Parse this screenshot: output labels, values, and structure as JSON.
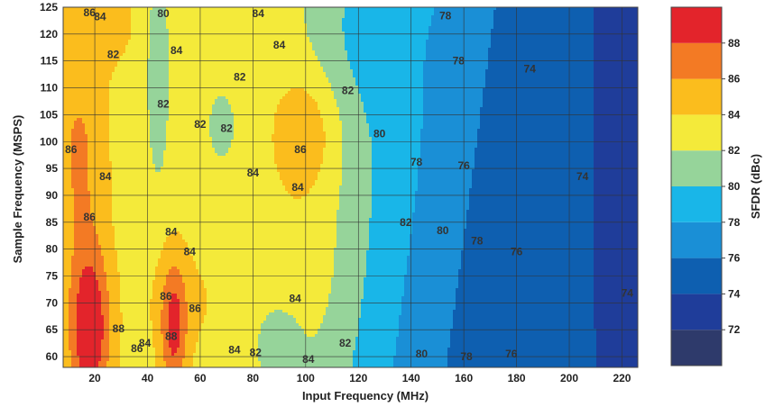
{
  "chart_data": {
    "type": "heatmap",
    "xlabel": "Input Frequency (MHz)",
    "ylabel": "Sample Frequency (MSPS)",
    "colorbar_label": "SFDR (dBc)",
    "xlim": [
      8,
      226
    ],
    "ylim": [
      58,
      125
    ],
    "x_ticks": [
      "20",
      "40",
      "60",
      "80",
      "100",
      "120",
      "140",
      "160",
      "180",
      "200",
      "220"
    ],
    "y_ticks": [
      "60",
      "65",
      "70",
      "75",
      "80",
      "85",
      "90",
      "95",
      "100",
      "105",
      "110",
      "115",
      "120",
      "125"
    ],
    "colorbar_ticks": [
      "72",
      "74",
      "76",
      "78",
      "80",
      "82",
      "84",
      "86",
      "88"
    ],
    "grid": true,
    "levels": [
      {
        "min": 70,
        "max": 72,
        "color": "#2e3a6b"
      },
      {
        "min": 72,
        "max": 74,
        "color": "#1f3d9a"
      },
      {
        "min": 74,
        "max": 76,
        "color": "#0e5fb0"
      },
      {
        "min": 76,
        "max": 78,
        "color": "#1a8fd6"
      },
      {
        "min": 78,
        "max": 80,
        "color": "#19b6e8"
      },
      {
        "min": 80,
        "max": 82,
        "color": "#96d49a"
      },
      {
        "min": 82,
        "max": 84,
        "color": "#f4ea3a"
      },
      {
        "min": 84,
        "max": 86,
        "color": "#fbbd1d"
      },
      {
        "min": 86,
        "max": 88,
        "color": "#f37a24"
      },
      {
        "min": 88,
        "max": 90,
        "color": "#e3242b"
      }
    ],
    "contour_labels": [
      {
        "text": "86",
        "x": 18,
        "y": 124
      },
      {
        "text": "84",
        "x": 22,
        "y": 123.2
      },
      {
        "text": "80",
        "x": 46,
        "y": 123.8
      },
      {
        "text": "84",
        "x": 82,
        "y": 123.8
      },
      {
        "text": "78",
        "x": 153,
        "y": 123.4
      },
      {
        "text": "82",
        "x": 27,
        "y": 116.2
      },
      {
        "text": "84",
        "x": 51,
        "y": 117
      },
      {
        "text": "84",
        "x": 90,
        "y": 118
      },
      {
        "text": "82",
        "x": 75,
        "y": 112
      },
      {
        "text": "78",
        "x": 158,
        "y": 115
      },
      {
        "text": "74",
        "x": 185,
        "y": 113.5
      },
      {
        "text": "82",
        "x": 46,
        "y": 107
      },
      {
        "text": "82",
        "x": 116,
        "y": 109.5
      },
      {
        "text": "82",
        "x": 60,
        "y": 103.2
      },
      {
        "text": "82",
        "x": 70,
        "y": 102.5
      },
      {
        "text": "80",
        "x": 128,
        "y": 101.5
      },
      {
        "text": "86",
        "x": 11,
        "y": 98.5
      },
      {
        "text": "86",
        "x": 98,
        "y": 98.5
      },
      {
        "text": "78",
        "x": 142,
        "y": 96.2
      },
      {
        "text": "76",
        "x": 160,
        "y": 95.5
      },
      {
        "text": "84",
        "x": 24,
        "y": 93.5
      },
      {
        "text": "84",
        "x": 80,
        "y": 94.2
      },
      {
        "text": "74",
        "x": 205,
        "y": 93.5
      },
      {
        "text": "84",
        "x": 97,
        "y": 91.5
      },
      {
        "text": "86",
        "x": 18,
        "y": 86
      },
      {
        "text": "82",
        "x": 138,
        "y": 85
      },
      {
        "text": "80",
        "x": 152,
        "y": 83.5
      },
      {
        "text": "84",
        "x": 49,
        "y": 83.2
      },
      {
        "text": "78",
        "x": 165,
        "y": 81.5
      },
      {
        "text": "76",
        "x": 180,
        "y": 79.5
      },
      {
        "text": "84",
        "x": 56,
        "y": 79.5
      },
      {
        "text": "86",
        "x": 47,
        "y": 71.2
      },
      {
        "text": "74",
        "x": 222,
        "y": 71.8
      },
      {
        "text": "84",
        "x": 96,
        "y": 70.8
      },
      {
        "text": "86",
        "x": 58,
        "y": 69
      },
      {
        "text": "88",
        "x": 29,
        "y": 65.2
      },
      {
        "text": "88",
        "x": 49,
        "y": 63.8
      },
      {
        "text": "82",
        "x": 115,
        "y": 62.5
      },
      {
        "text": "84",
        "x": 39,
        "y": 62.5
      },
      {
        "text": "86",
        "x": 36,
        "y": 61.5
      },
      {
        "text": "84",
        "x": 73,
        "y": 61.3
      },
      {
        "text": "82",
        "x": 81,
        "y": 60.8
      },
      {
        "text": "80",
        "x": 144,
        "y": 60.5
      },
      {
        "text": "78",
        "x": 161,
        "y": 60
      },
      {
        "text": "76",
        "x": 178,
        "y": 60.5
      },
      {
        "text": "84",
        "x": 101,
        "y": 59.5
      }
    ]
  }
}
